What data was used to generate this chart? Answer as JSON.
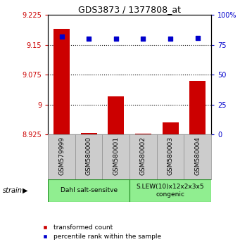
{
  "title": "GDS3873 / 1377808_at",
  "samples": [
    "GSM579999",
    "GSM580000",
    "GSM580001",
    "GSM580002",
    "GSM580003",
    "GSM580004"
  ],
  "red_values": [
    9.19,
    8.928,
    9.02,
    8.927,
    8.955,
    9.06
  ],
  "blue_values": [
    82,
    80,
    80,
    80,
    80,
    81
  ],
  "ylim_left": [
    8.925,
    9.225
  ],
  "ylim_right": [
    0,
    100
  ],
  "yticks_left": [
    8.925,
    9.0,
    9.075,
    9.15,
    9.225
  ],
  "yticks_right": [
    0,
    25,
    50,
    75,
    100
  ],
  "ytick_labels_left": [
    "8.925",
    "9",
    "9.075",
    "9.15",
    "9.225"
  ],
  "ytick_labels_right": [
    "0",
    "25",
    "50",
    "75",
    "100%"
  ],
  "hlines": [
    9.0,
    9.075,
    9.15
  ],
  "groups": [
    {
      "label": "Dahl salt-sensitve",
      "start": 0,
      "end": 3,
      "color": "#90EE90"
    },
    {
      "label": "S.LEW(10)x12x2x3x5\ncongenic",
      "start": 3,
      "end": 6,
      "color": "#90EE90"
    }
  ],
  "group_row_label": "strain",
  "bar_color": "#CC0000",
  "dot_color": "#0000CC",
  "bar_width": 0.6,
  "xlabel_color": "#CC0000",
  "ylabel_right_color": "#0000CC",
  "background_color": "#ffffff",
  "tick_area_color": "#cccccc",
  "group_border_color": "#228B22"
}
